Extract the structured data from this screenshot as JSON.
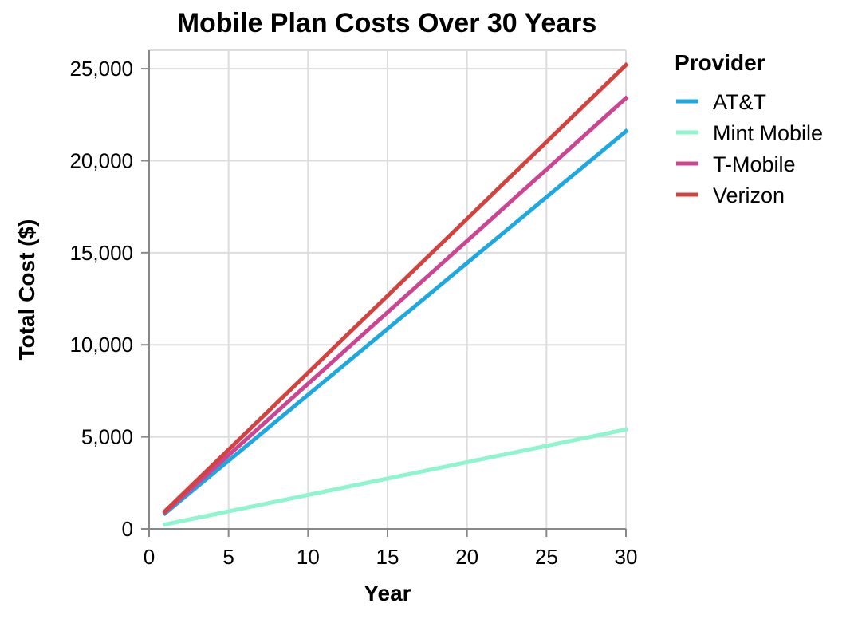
{
  "chart_data": {
    "type": "line",
    "title": "Mobile Plan Costs Over 30 Years",
    "xlabel": "Year",
    "ylabel": "Total Cost ($)",
    "xlim": [
      0,
      30
    ],
    "ylim": [
      0,
      26000
    ],
    "x_ticks": [
      0,
      5,
      10,
      15,
      20,
      25,
      30
    ],
    "x_tick_labels": [
      "0",
      "5",
      "10",
      "15",
      "20",
      "25",
      "30"
    ],
    "y_ticks": [
      0,
      5000,
      10000,
      15000,
      20000,
      25000
    ],
    "y_tick_labels": [
      "0",
      "5,000",
      "10,000",
      "15,000",
      "20,000",
      "25,000"
    ],
    "grid": true,
    "legend": {
      "title": "Provider",
      "placement": "right"
    },
    "x": [
      1,
      30
    ],
    "series": [
      {
        "name": "AT&T",
        "color": "#1ea8e0",
        "values": [
          840,
          21600
        ]
      },
      {
        "name": "Mint Mobile",
        "color": "#8ef5cf",
        "values": [
          240,
          5400
        ]
      },
      {
        "name": "T-Mobile",
        "color": "#cc4592",
        "values": [
          900,
          23400
        ]
      },
      {
        "name": "Verizon",
        "color": "#d2433f",
        "values": [
          960,
          25200
        ]
      }
    ]
  }
}
